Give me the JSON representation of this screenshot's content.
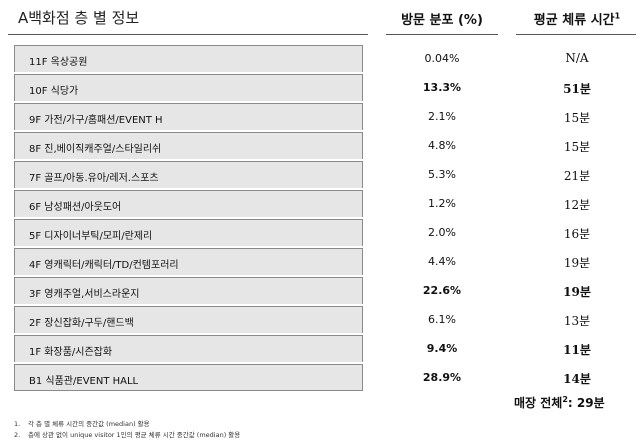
{
  "header": {
    "title": "A백화점 층 별 정보",
    "col_visits": "방문 분포 (%)",
    "col_time": "평균 체류 시간",
    "col_time_sup": "1"
  },
  "floors": [
    {
      "label": "11F 옥상공원",
      "visit": "0.04%",
      "time": "N/A",
      "bold": false
    },
    {
      "label": "10F 식당가",
      "visit": "13.3%",
      "time": "51분",
      "bold": true
    },
    {
      "label": "9F 가전/가구/홈패션/EVENT H",
      "visit": "2.1%",
      "time": "15분",
      "bold": false
    },
    {
      "label": "8F 진,베이직캐주얼/스타일리쉬",
      "visit": "4.8%",
      "time": "15분",
      "bold": false
    },
    {
      "label": "7F 골프/아동.유아/레저.스포츠",
      "visit": "5.3%",
      "time": "21분",
      "bold": false
    },
    {
      "label": "6F 남성패션/아웃도어",
      "visit": "1.2%",
      "time": "12분",
      "bold": false
    },
    {
      "label": "5F 디자이너부틱/모피/란제리",
      "visit": "2.0%",
      "time": "16분",
      "bold": false
    },
    {
      "label": "4F 영캐릭터/캐릭터/TD/컨템포러리",
      "visit": "4.4%",
      "time": "19분",
      "bold": false
    },
    {
      "label": "3F 영캐주얼,서비스라운지",
      "visit": "22.6%",
      "time": "19분",
      "bold": true
    },
    {
      "label": "2F 장신잡화/구두/핸드백",
      "visit": "6.1%",
      "time": "13분",
      "bold": false
    },
    {
      "label": "1F 화장품/시즌잡화",
      "visit": "9.4%",
      "time": "11분",
      "bold": true
    },
    {
      "label": "B1 식품관/EVENT HALL",
      "visit": "28.9%",
      "time": "14분",
      "bold": true
    }
  ],
  "total": {
    "label": "매장 전체",
    "sup": "2",
    "value": ": 29분"
  },
  "notes": [
    {
      "num": "1.",
      "text": "각 층 별 체류 시간의 중간값 (median) 활용"
    },
    {
      "num": "2.",
      "text": "층에 상관 없이 unique visitor 1인의 평균 체류 시간 중간값 (median) 활용"
    }
  ]
}
